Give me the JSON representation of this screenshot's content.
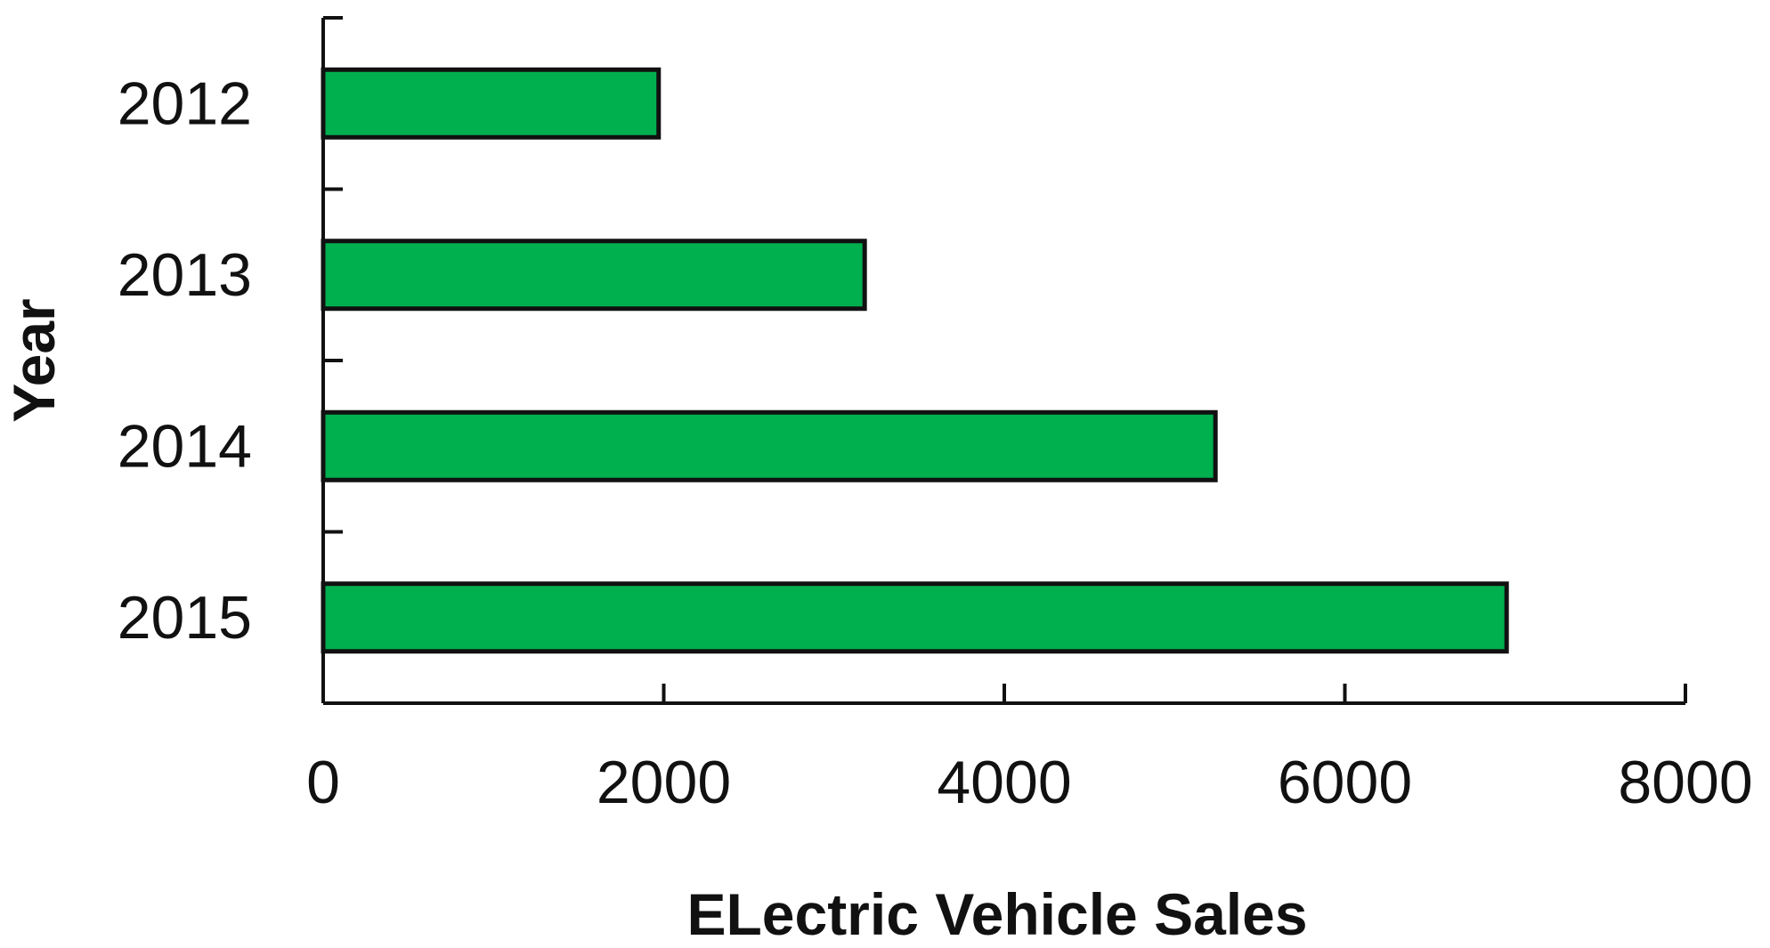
{
  "chart_data": {
    "type": "bar",
    "orientation": "horizontal",
    "categories": [
      "2012",
      "2013",
      "2014",
      "2015"
    ],
    "values": [
      1970,
      3180,
      5240,
      6950
    ],
    "xlabel": "ELectric Vehicle Sales",
    "ylabel": "Year",
    "xlim": [
      0,
      8000
    ],
    "xticks": [
      "0",
      "2000",
      "4000",
      "6000",
      "8000"
    ],
    "grid": false,
    "legend": "none",
    "colors": {
      "bar_fill": "#00b04f",
      "bar_stroke": "#111111",
      "axis": "#111111",
      "text": "#111111"
    }
  }
}
